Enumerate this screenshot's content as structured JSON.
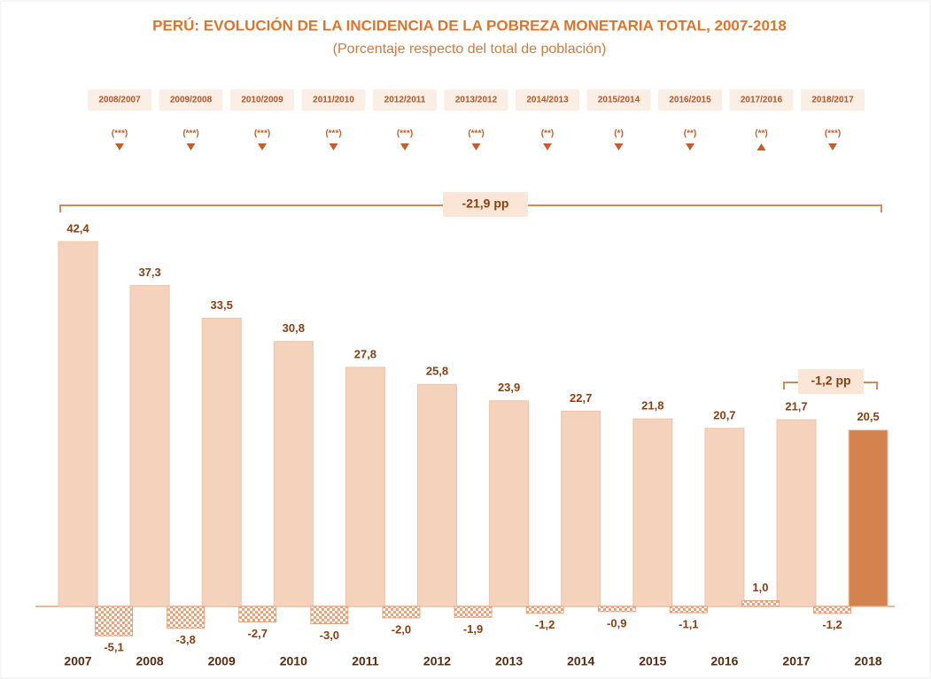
{
  "chart_data": {
    "type": "bar",
    "title": "PERÚ: EVOLUCIÓN DE LA INCIDENCIA DE LA POBREZA MONETARIA TOTAL, 2007-2018",
    "subtitle": "(Porcentaje respecto del total de población)",
    "categories": [
      "2007",
      "2008",
      "2009",
      "2010",
      "2011",
      "2012",
      "2013",
      "2014",
      "2015",
      "2016",
      "2017",
      "2018"
    ],
    "values": [
      42.4,
      37.3,
      33.5,
      30.8,
      27.8,
      25.8,
      23.9,
      22.7,
      21.8,
      20.7,
      21.7,
      20.5
    ],
    "value_labels": [
      "42,4",
      "37,3",
      "33,5",
      "30,8",
      "27,8",
      "25,8",
      "23,9",
      "22,7",
      "21,8",
      "20,7",
      "21,7",
      "20,5"
    ],
    "colors": [
      "#f5d2bc",
      "#f5d2bc",
      "#f5d2bc",
      "#f5d2bc",
      "#f5d2bc",
      "#f5d2bc",
      "#f5d2bc",
      "#f5d2bc",
      "#f5d2bc",
      "#f5d2bc",
      "#f5d2bc",
      "#d4834f"
    ],
    "changes": {
      "periods": [
        "2008/2007",
        "2009/2008",
        "2010/2009",
        "2011/2010",
        "2012/2011",
        "2013/2012",
        "2014/2013",
        "2015/2014",
        "2016/2015",
        "2017/2016",
        "2018/2017"
      ],
      "significance": [
        "(***)",
        "(***)",
        "(***)",
        "(***)",
        "(***)",
        "(***)",
        "(**)",
        "(*)",
        "(**)",
        "(**)",
        "(***)"
      ],
      "values": [
        -5.1,
        -3.8,
        -2.7,
        -3.0,
        -2.0,
        -1.9,
        -1.2,
        -0.9,
        -1.1,
        1.0,
        -1.2
      ],
      "value_labels": [
        "-5,1",
        "-3,8",
        "-2,7",
        "-3,0",
        "-2,0",
        "-1,9",
        "-1,2",
        "-0,9",
        "-1,1",
        "1,0",
        "-1,2"
      ],
      "color": "#e8a37c"
    },
    "annotations": [
      {
        "text": "-21,9 pp"
      },
      {
        "text": "-1,2 pp"
      }
    ]
  }
}
